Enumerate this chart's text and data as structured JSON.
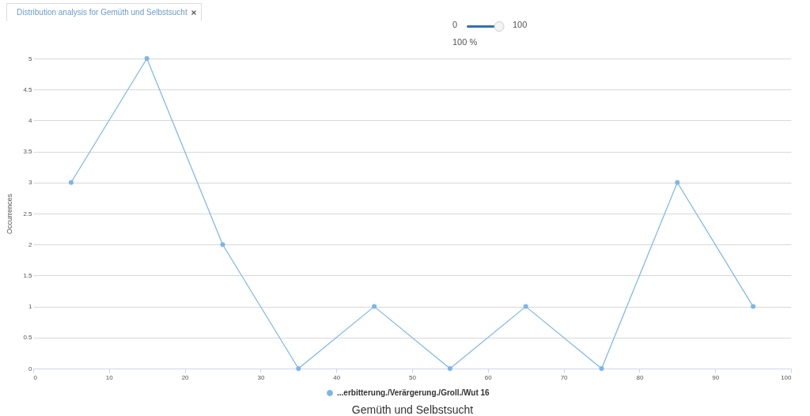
{
  "chart_data": {
    "type": "line",
    "title": "Distribution analysis for Gemüth und Selbstsucht",
    "xlabel": "Gemüth und Selbstsucht",
    "ylabel": "Occurrences",
    "annotations": [
      "0",
      "100",
      "100 %"
    ],
    "x": [
      5,
      15,
      25,
      35,
      45,
      55,
      65,
      75,
      85,
      95
    ],
    "series": [
      {
        "name": "...erbitterung./Verärgerung./Groll./Wut 16",
        "color": "#7cb5ec",
        "values": [
          3,
          5,
          2,
          0,
          1,
          0,
          1,
          0,
          3,
          1
        ]
      }
    ],
    "xlim": [
      0,
      100
    ],
    "xticks": [
      0,
      10,
      20,
      30,
      40,
      50,
      60,
      70,
      80,
      90,
      100
    ],
    "ylim": [
      0,
      5
    ],
    "yticks": [
      0,
      0.5,
      1,
      1.5,
      2,
      2.5,
      3,
      3.5,
      4,
      4.5,
      5
    ],
    "grid": "y",
    "legend": "bottom",
    "marker": "circle",
    "line_style": "solid"
  }
}
